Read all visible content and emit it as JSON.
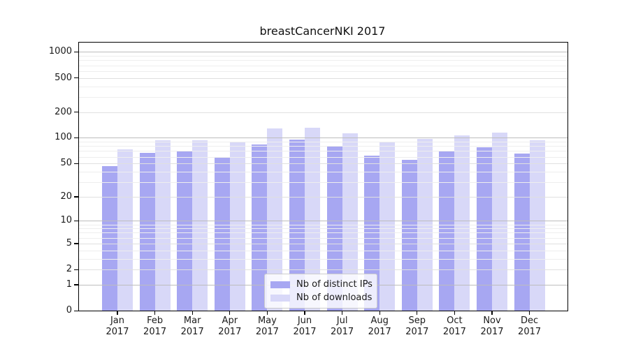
{
  "title": "breastCancerNKI 2017",
  "chart_data": {
    "type": "bar",
    "title": "breastCancerNKI 2017",
    "x_categories": [
      "Jan",
      "Feb",
      "Mar",
      "Apr",
      "May",
      "Jun",
      "Jul",
      "Aug",
      "Sep",
      "Oct",
      "Nov",
      "Dec"
    ],
    "x_year": "2017",
    "series": [
      {
        "name": "Nb of distinct IPs",
        "color": "#a7a7f2",
        "values": [
          46,
          66,
          70,
          58,
          83,
          96,
          81,
          62,
          55,
          70,
          77,
          65
        ]
      },
      {
        "name": "Nb of downloads",
        "color": "#d8d8f8",
        "values": [
          73,
          93,
          93,
          90,
          128,
          132,
          114,
          88,
          97,
          106,
          116,
          94
        ]
      }
    ],
    "y_scale": "log10(1+v)",
    "y_tick_labels": [
      1000,
      500,
      200,
      100,
      50,
      20,
      10,
      5,
      2,
      1,
      0
    ],
    "y_minor_gridlines": [
      3,
      4,
      6,
      7,
      8,
      9,
      30,
      40,
      60,
      70,
      80,
      90,
      300,
      400,
      600,
      700,
      800,
      900
    ],
    "ylim": [
      0,
      1300
    ],
    "grid": "horizontal",
    "legend_position": "lower center",
    "legend": [
      "Nb of distinct IPs",
      "Nb of downloads"
    ]
  }
}
